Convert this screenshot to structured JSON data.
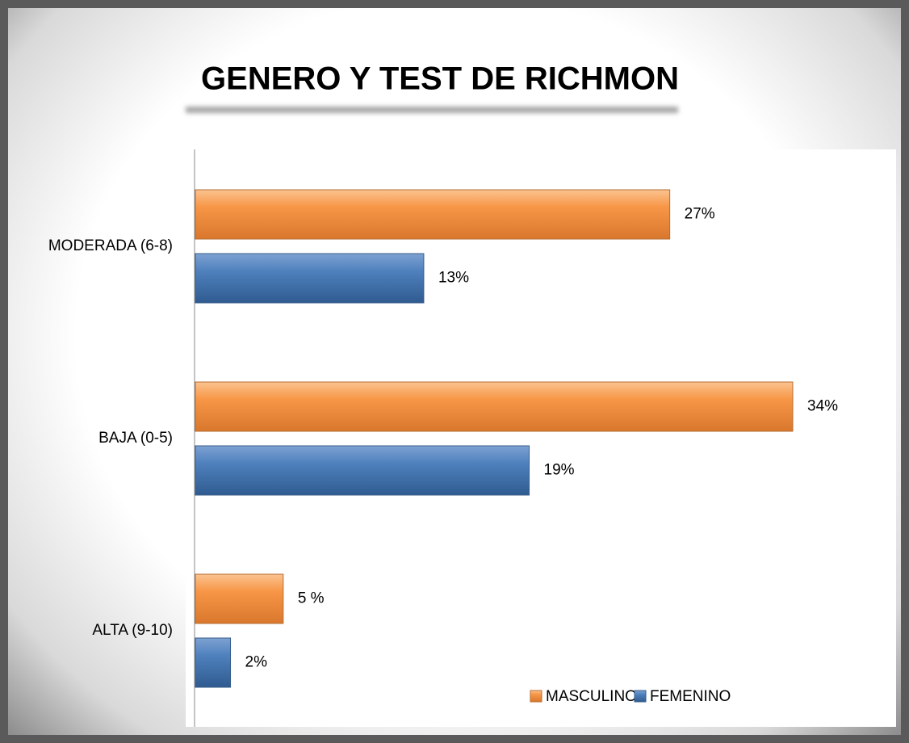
{
  "chart_data": {
    "type": "hbar",
    "title": "GENERO Y TEST DE RICHMON",
    "categories": [
      "MODERADA (6-8)",
      "BAJA (0-5)",
      "ALTA (9-10)"
    ],
    "series": [
      {
        "name": "MASCULINO",
        "color": "#f79646",
        "values": [
          27,
          34,
          5
        ],
        "value_labels": [
          "27%",
          "34%",
          "5 %"
        ]
      },
      {
        "name": "FEMENINO",
        "color": "#4f81bd",
        "values": [
          13,
          19,
          2
        ],
        "value_labels": [
          "13%",
          "19%",
          "2%"
        ]
      }
    ],
    "legend": "bottom-right"
  }
}
